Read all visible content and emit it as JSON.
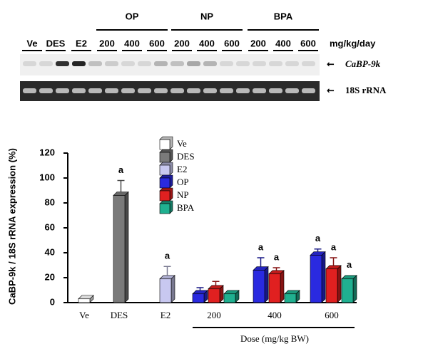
{
  "blot": {
    "lanes": [
      "Ve",
      "DES",
      "E2"
    ],
    "groups": [
      {
        "name": "OP",
        "doses": [
          "200",
          "400",
          "600"
        ]
      },
      {
        "name": "NP",
        "doses": [
          "200",
          "400",
          "600"
        ]
      },
      {
        "name": "BPA",
        "doses": [
          "200",
          "400",
          "600"
        ]
      }
    ],
    "unit": "mg/kg/day",
    "bands": [
      "CaBP-9k",
      "18S rRNA"
    ]
  },
  "chart_data": {
    "type": "bar",
    "y_label": "CaBP-9k / 18S rRNA expression (%)",
    "x_label": "Dose (mg/kg BW)",
    "categories": [
      "Ve",
      "DES",
      "E2",
      "200",
      "400",
      "600"
    ],
    "ylim": [
      0,
      120
    ],
    "yticks": [
      0,
      20,
      40,
      60,
      80,
      100,
      120
    ],
    "series": [
      {
        "name": "Ve",
        "color": "#ffffff",
        "values": [
          3,
          null,
          null,
          null,
          null,
          null
        ],
        "errors": [
          null,
          null,
          null,
          null,
          null,
          null
        ],
        "annotations": [
          null,
          null,
          null,
          null,
          null,
          null
        ]
      },
      {
        "name": "DES",
        "color": "#7a7a7a",
        "values": [
          null,
          86,
          null,
          null,
          null,
          null
        ],
        "errors": [
          null,
          12,
          null,
          null,
          null,
          null
        ],
        "annotations": [
          null,
          "a",
          null,
          null,
          null,
          null
        ]
      },
      {
        "name": "E2",
        "color": "#c8c8f0",
        "values": [
          null,
          null,
          19,
          null,
          null,
          null
        ],
        "errors": [
          null,
          null,
          10,
          null,
          null,
          null
        ],
        "annotations": [
          null,
          null,
          "a",
          null,
          null,
          null
        ]
      },
      {
        "name": "OP",
        "color": "#2a2ae0",
        "values": [
          null,
          null,
          null,
          7,
          26,
          38
        ],
        "errors": [
          null,
          null,
          null,
          5,
          10,
          5
        ],
        "annotations": [
          null,
          null,
          null,
          null,
          "a",
          "a"
        ]
      },
      {
        "name": "NP",
        "color": "#e02020",
        "values": [
          null,
          null,
          null,
          11,
          23,
          27
        ],
        "errors": [
          null,
          null,
          null,
          6,
          5,
          9
        ],
        "annotations": [
          null,
          null,
          null,
          null,
          "a",
          "a"
        ]
      },
      {
        "name": "BPA",
        "color": "#20b090",
        "values": [
          null,
          null,
          null,
          7,
          7,
          19
        ],
        "errors": [
          null,
          null,
          null,
          null,
          null,
          null
        ],
        "annotations": [
          null,
          null,
          null,
          null,
          null,
          "a"
        ]
      }
    ]
  }
}
